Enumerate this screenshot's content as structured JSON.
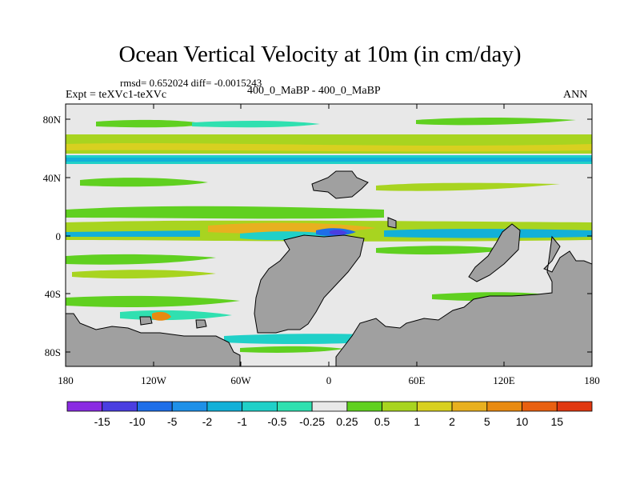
{
  "title": "Ocean Vertical Velocity at 10m (in cm/day)",
  "stats": "rmsd= 0.652024 diff= -0.0015243",
  "expt": "Expt = teXVc1-teXVc",
  "case": "400_0_MaBP - 400_0_MaBP",
  "season": "ANN",
  "x_ticks": [
    "180",
    "120W",
    "60W",
    "0",
    "60E",
    "120E",
    "180"
  ],
  "y_ticks": [
    "80N",
    "40N",
    "0",
    "40S",
    "80S"
  ],
  "colorbar": {
    "labels": [
      "-15",
      "-10",
      "-5",
      "-2",
      "-1",
      "-0.5",
      "-0.25",
      "0.25",
      "0.5",
      "1",
      "2",
      "5",
      "10",
      "15"
    ],
    "colors": [
      "#8a2be2",
      "#4a3ee0",
      "#1e6ee8",
      "#1e90e8",
      "#12b0d8",
      "#20d0c8",
      "#30e0b0",
      "#e8e8e8",
      "#60d020",
      "#a8d420",
      "#d8d020",
      "#e8b020",
      "#e88a10",
      "#e86010",
      "#e03810"
    ]
  },
  "map_colors": {
    "land": "#a0a0a0",
    "background": "#e8e8e8"
  }
}
